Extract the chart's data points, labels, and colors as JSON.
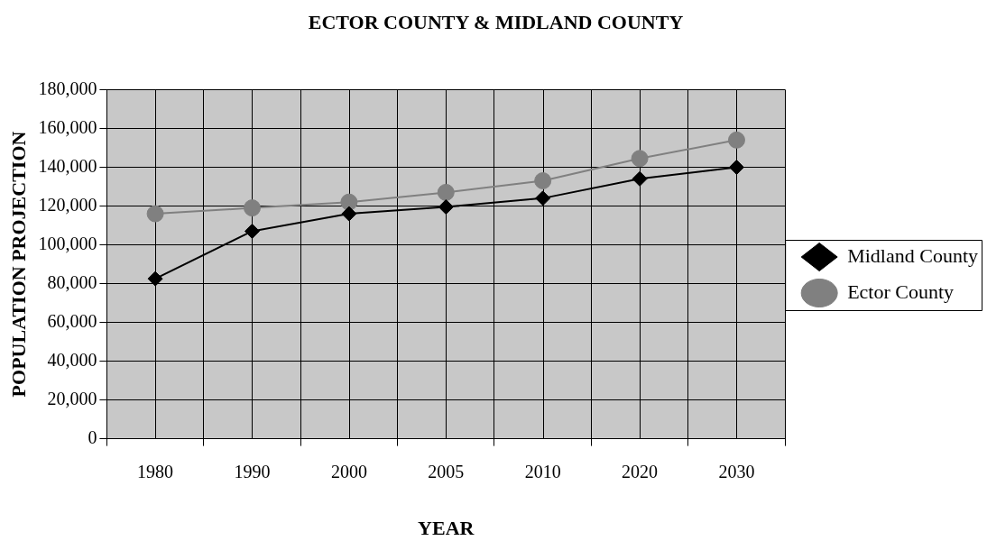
{
  "chart_data": {
    "type": "line",
    "title": "ECTOR COUNTY & MIDLAND COUNTY",
    "xlabel": "YEAR",
    "ylabel": "POPULATION PROJECTION",
    "categories": [
      "1980",
      "1990",
      "2000",
      "2005",
      "2010",
      "2020",
      "2030"
    ],
    "series": [
      {
        "name": "Midland County",
        "color": "#000000",
        "marker": "diamond",
        "values": [
          82500,
          107000,
          116000,
          119500,
          124000,
          134000,
          140000
        ]
      },
      {
        "name": "Ector County",
        "color": "#808080",
        "marker": "circle",
        "values": [
          116000,
          119000,
          122000,
          127000,
          133000,
          144500,
          154000
        ]
      }
    ],
    "ylim": [
      0,
      180000
    ],
    "yticks": [
      0,
      {
        "value": 20000,
        "label": "20,000"
      },
      {
        "value": 40000,
        "label": "40,000"
      },
      {
        "value": 60000,
        "label": "60,000"
      },
      {
        "value": 80000,
        "label": "80,000"
      },
      {
        "value": 100000,
        "label": "100,000"
      },
      {
        "value": 120000,
        "label": "120,000"
      },
      {
        "value": 140000,
        "label": "140,000"
      },
      {
        "value": 160000,
        "label": "160,000"
      },
      {
        "value": 180000,
        "label": "180,000"
      }
    ],
    "grid": true,
    "legend": "right",
    "line_style": "solid"
  }
}
